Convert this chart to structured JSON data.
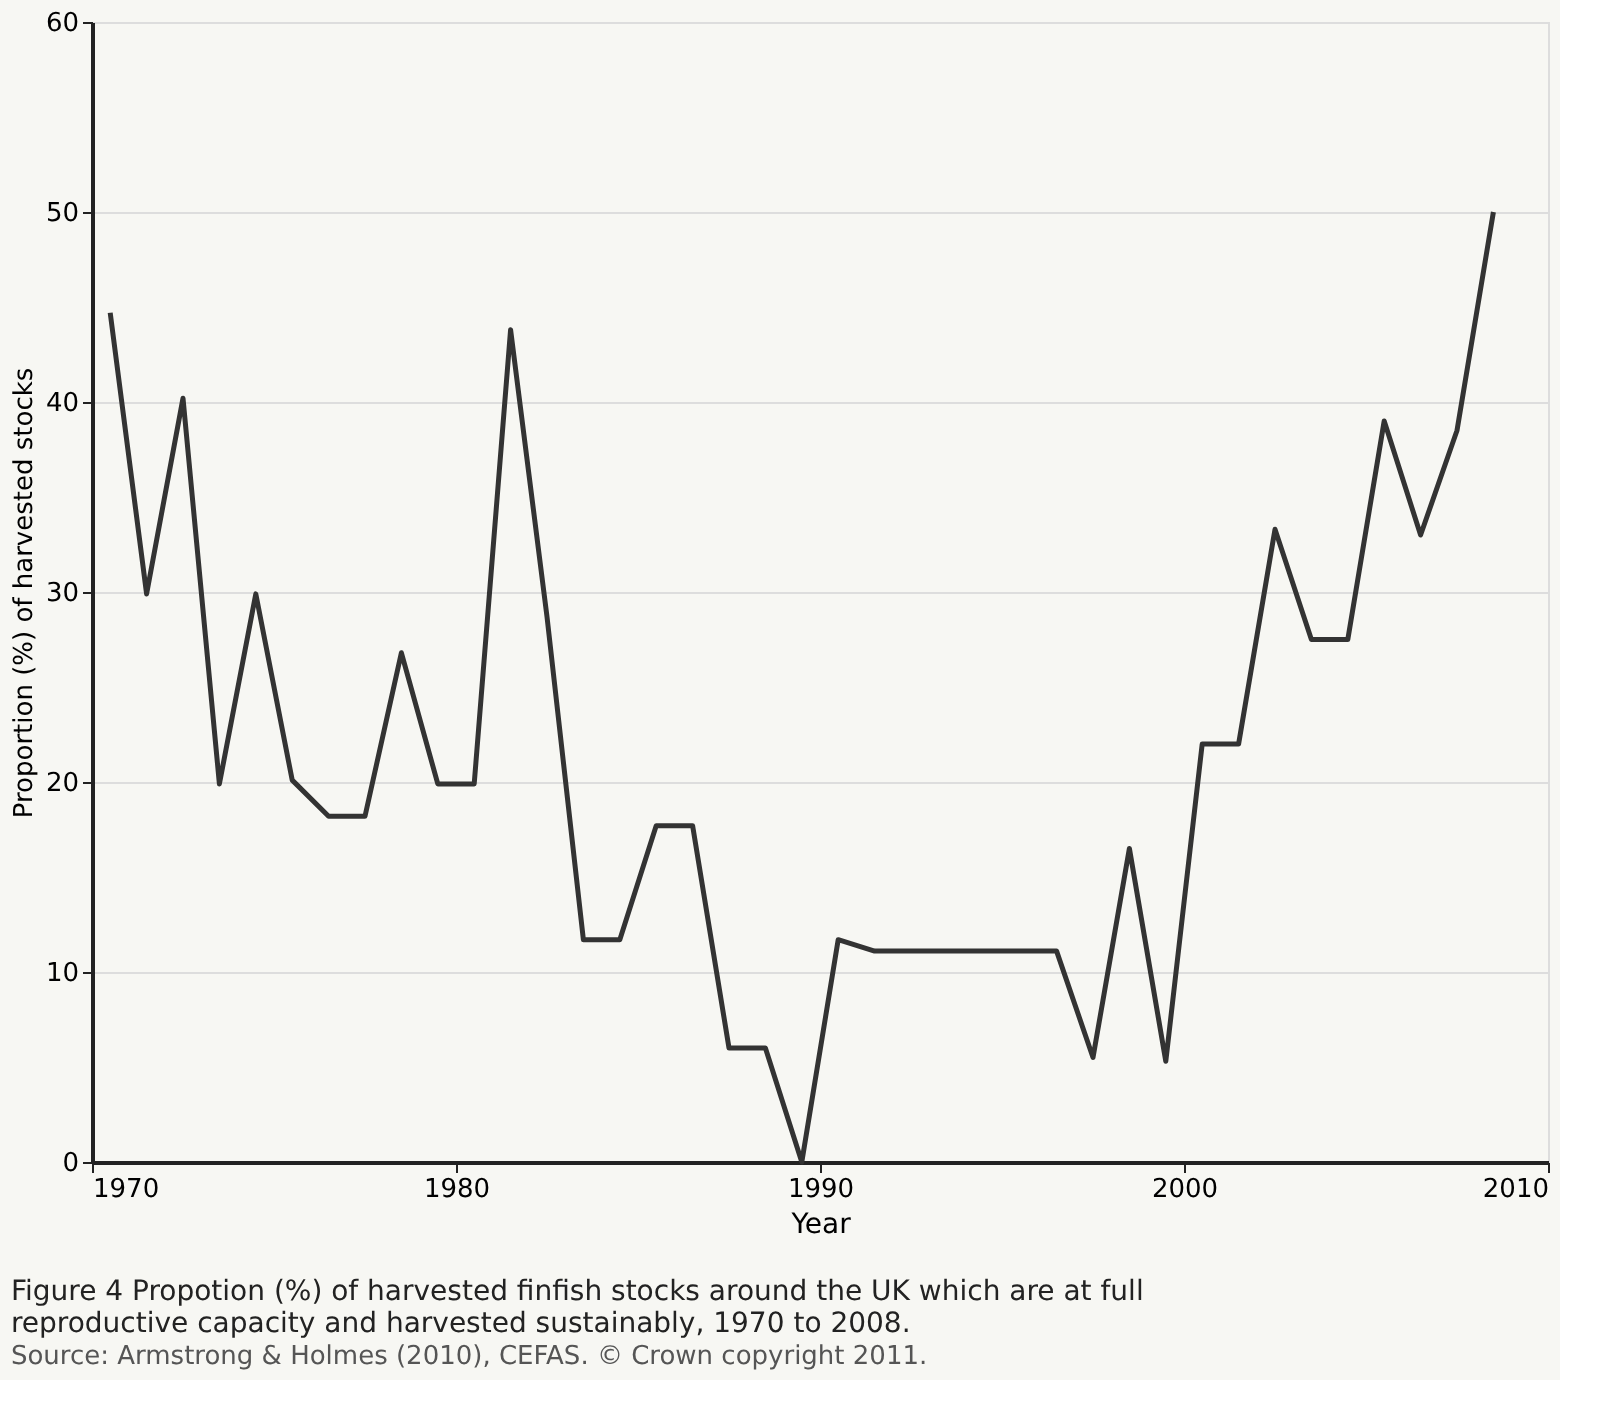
{
  "chart_data": {
    "type": "line",
    "xlabel": "Year",
    "ylabel": "Proportion (%) of harvested stocks",
    "x": [
      1970.5,
      1971.5,
      1972.5,
      1973.5,
      1974.5,
      1975.5,
      1976.5,
      1977.5,
      1978.5,
      1979.5,
      1980.5,
      1981.5,
      1982.5,
      1983.5,
      1984.5,
      1985.5,
      1986.5,
      1987.5,
      1988.5,
      1989.5,
      1990.5,
      1991.5,
      1992.5,
      1993.5,
      1994.5,
      1995.5,
      1996.5,
      1997.5,
      1998.5,
      1999.5,
      2000.5,
      2001.5,
      2002.5,
      2003.5,
      2004.5,
      2005.5,
      2006.5,
      2007.5,
      2008.5
    ],
    "series": [
      {
        "color": "#333333",
        "values": [
          44.7,
          29.9,
          40.2,
          19.9,
          29.9,
          20.1,
          18.2,
          18.2,
          26.8,
          19.9,
          19.9,
          43.8,
          28.7,
          11.7,
          11.7,
          17.7,
          17.7,
          6.0,
          6.0,
          0,
          11.7,
          11.1,
          11.1,
          11.1,
          11.1,
          11.1,
          11.1,
          5.5,
          16.5,
          5.3,
          22,
          22,
          33.3,
          27.5,
          27.5,
          39,
          33,
          38.5,
          50
        ]
      }
    ],
    "xlim": [
      1970,
      2010
    ],
    "xticks": [
      1970,
      1980,
      1990,
      2000,
      2010
    ],
    "ylim": [
      0,
      60
    ],
    "yticks": [
      0,
      10,
      20,
      30,
      40,
      50,
      60
    ],
    "grid": "y",
    "marker": "none",
    "line_style": "solid",
    "annotations": [
      "Figure 4 Propotion (%) of harvested finfish stocks around the UK which are at full reproductive capacity and harvested sustainably, 1970 to 2008.",
      "Source: Armstrong & Holmes (2010), CEFAS. © Crown copyright 2011."
    ]
  }
}
